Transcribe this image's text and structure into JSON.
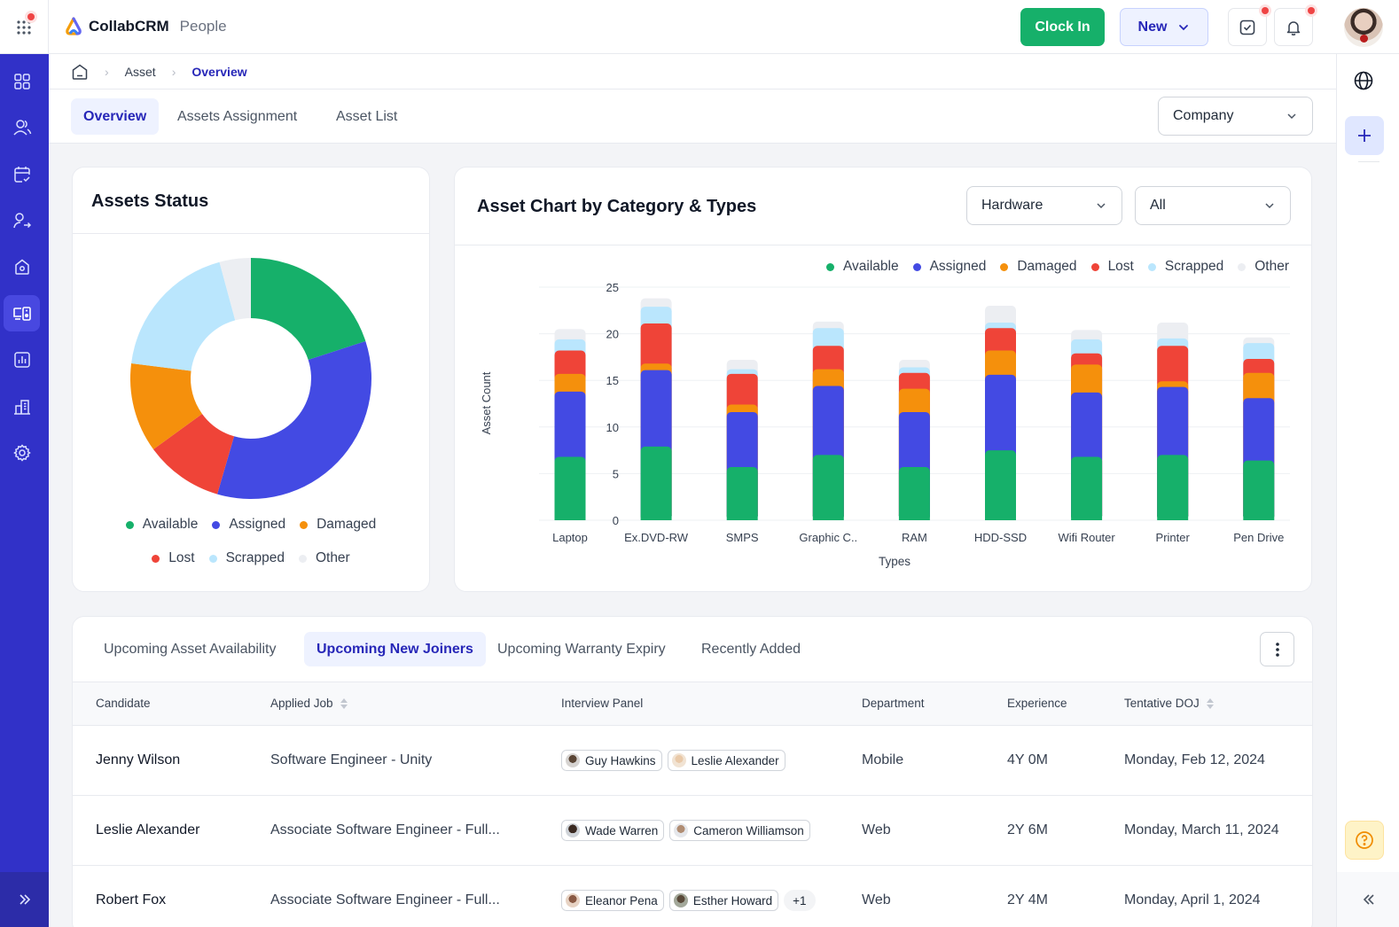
{
  "app": {
    "name": "CollabCRM",
    "module": "People"
  },
  "header": {
    "clock_in_label": "Clock In",
    "new_label": "New",
    "tasks_has_badge": true,
    "notifications_has_badge": true
  },
  "sidebar": {
    "items": [
      {
        "icon": "dashboard-grid-icon",
        "active": false
      },
      {
        "icon": "people-icon",
        "active": false
      },
      {
        "icon": "calendar-check-icon",
        "active": false
      },
      {
        "icon": "user-transfer-icon",
        "active": false
      },
      {
        "icon": "home-icon",
        "active": false
      },
      {
        "icon": "devices-asset-icon",
        "active": true
      },
      {
        "icon": "bar-chart-icon",
        "active": false
      },
      {
        "icon": "building-icon",
        "active": false
      },
      {
        "icon": "settings-gear-icon",
        "active": false
      }
    ],
    "expand_icon": "double-chevron-right-icon"
  },
  "breadcrumb": {
    "items": [
      "Asset",
      "Overview"
    ]
  },
  "subnav": {
    "tabs": [
      {
        "label": "Overview",
        "active": true
      },
      {
        "label": "Assets Assignment",
        "active": false
      },
      {
        "label": "Asset List",
        "active": false
      }
    ],
    "scope_select": "Company"
  },
  "assets_status": {
    "title": "Assets Status"
  },
  "asset_chart": {
    "title": "Asset Chart by Category & Types",
    "category_select": "Hardware",
    "type_select": "All"
  },
  "colors": {
    "Available": "#16b06a",
    "Assigned": "#434ae3",
    "Damaged": "#f5900c",
    "Lost": "#ef4438",
    "Scrapped": "#bae6fd",
    "Other": "#eceef2"
  },
  "chart_data": [
    {
      "type": "pie",
      "title": "Assets Status",
      "donut": true,
      "labels": [
        "Available",
        "Assigned",
        "Lost",
        "Damaged",
        "Scrapped",
        "Other"
      ],
      "values": [
        20,
        34.5,
        10.5,
        12,
        18.8,
        4.2
      ],
      "unit": "percent (estimated)",
      "legend": [
        "Available",
        "Assigned",
        "Damaged",
        "Lost",
        "Scrapped",
        "Other"
      ],
      "legend_position": "bottom"
    },
    {
      "type": "bar",
      "stacked": true,
      "title": "Asset Chart by Category & Types",
      "xlabel": "Types",
      "ylabel": "Asset Count",
      "ylim": [
        0,
        25
      ],
      "yticks": [
        0,
        5,
        10,
        15,
        20,
        25
      ],
      "grid": true,
      "legend_position": "top-right",
      "categories": [
        "Laptop",
        "Ex.DVD-RW",
        "SMPS",
        "Graphic C..",
        "RAM",
        "HDD-SSD",
        "Wifi Router",
        "Printer",
        "Pen Drive"
      ],
      "series": [
        {
          "name": "Available",
          "values": [
            6.8,
            7.9,
            5.7,
            7.0,
            5.7,
            7.5,
            6.8,
            7.0,
            6.4
          ]
        },
        {
          "name": "Assigned",
          "values": [
            7.0,
            8.2,
            5.9,
            7.4,
            5.9,
            8.1,
            6.9,
            7.3,
            6.7
          ]
        },
        {
          "name": "Damaged",
          "values": [
            1.9,
            0.7,
            0.8,
            1.8,
            2.5,
            2.6,
            3.0,
            0.6,
            2.7
          ]
        },
        {
          "name": "Lost",
          "values": [
            2.5,
            4.3,
            3.3,
            2.5,
            1.7,
            2.4,
            1.2,
            3.8,
            1.5
          ]
        },
        {
          "name": "Scrapped",
          "values": [
            1.2,
            1.8,
            0.5,
            1.9,
            0.6,
            0.6,
            1.5,
            0.8,
            1.7
          ]
        },
        {
          "name": "Other",
          "values": [
            1.1,
            0.9,
            1.0,
            0.7,
            0.8,
            1.8,
            1.0,
            1.7,
            0.6
          ]
        }
      ]
    }
  ],
  "bottom_tabs": [
    {
      "label": "Upcoming Asset Availability",
      "active": false
    },
    {
      "label": "Upcoming New Joiners",
      "active": true
    },
    {
      "label": "Upcoming Warranty Expiry",
      "active": false
    },
    {
      "label": "Recently Added",
      "active": false
    }
  ],
  "table": {
    "columns": [
      {
        "label": "Candidate",
        "sortable": false
      },
      {
        "label": "Applied Job",
        "sortable": true
      },
      {
        "label": "Interview Panel",
        "sortable": false
      },
      {
        "label": "Department",
        "sortable": false
      },
      {
        "label": "Experience",
        "sortable": false
      },
      {
        "label": "Tentative DOJ",
        "sortable": true
      }
    ],
    "rows": [
      {
        "candidate": "Jenny Wilson",
        "job": "Software Engineer - Unity",
        "panel": [
          "Guy Hawkins",
          "Leslie Alexander"
        ],
        "panel_more": "",
        "department": "Mobile",
        "experience": "4Y 0M",
        "doj": "Monday, Feb 12, 2024"
      },
      {
        "candidate": "Leslie Alexander",
        "job": "Associate Software Engineer - Full...",
        "panel": [
          "Wade Warren",
          "Cameron Williamson"
        ],
        "panel_more": "",
        "department": "Web",
        "experience": "2Y 6M",
        "doj": "Monday, March 11, 2024"
      },
      {
        "candidate": "Robert Fox",
        "job": "Associate Software Engineer - Full...",
        "panel": [
          "Eleanor Pena",
          "Esther Howard"
        ],
        "panel_more": "+1",
        "department": "Web",
        "experience": "2Y 4M",
        "doj": "Monday, April 1, 2024"
      }
    ]
  }
}
